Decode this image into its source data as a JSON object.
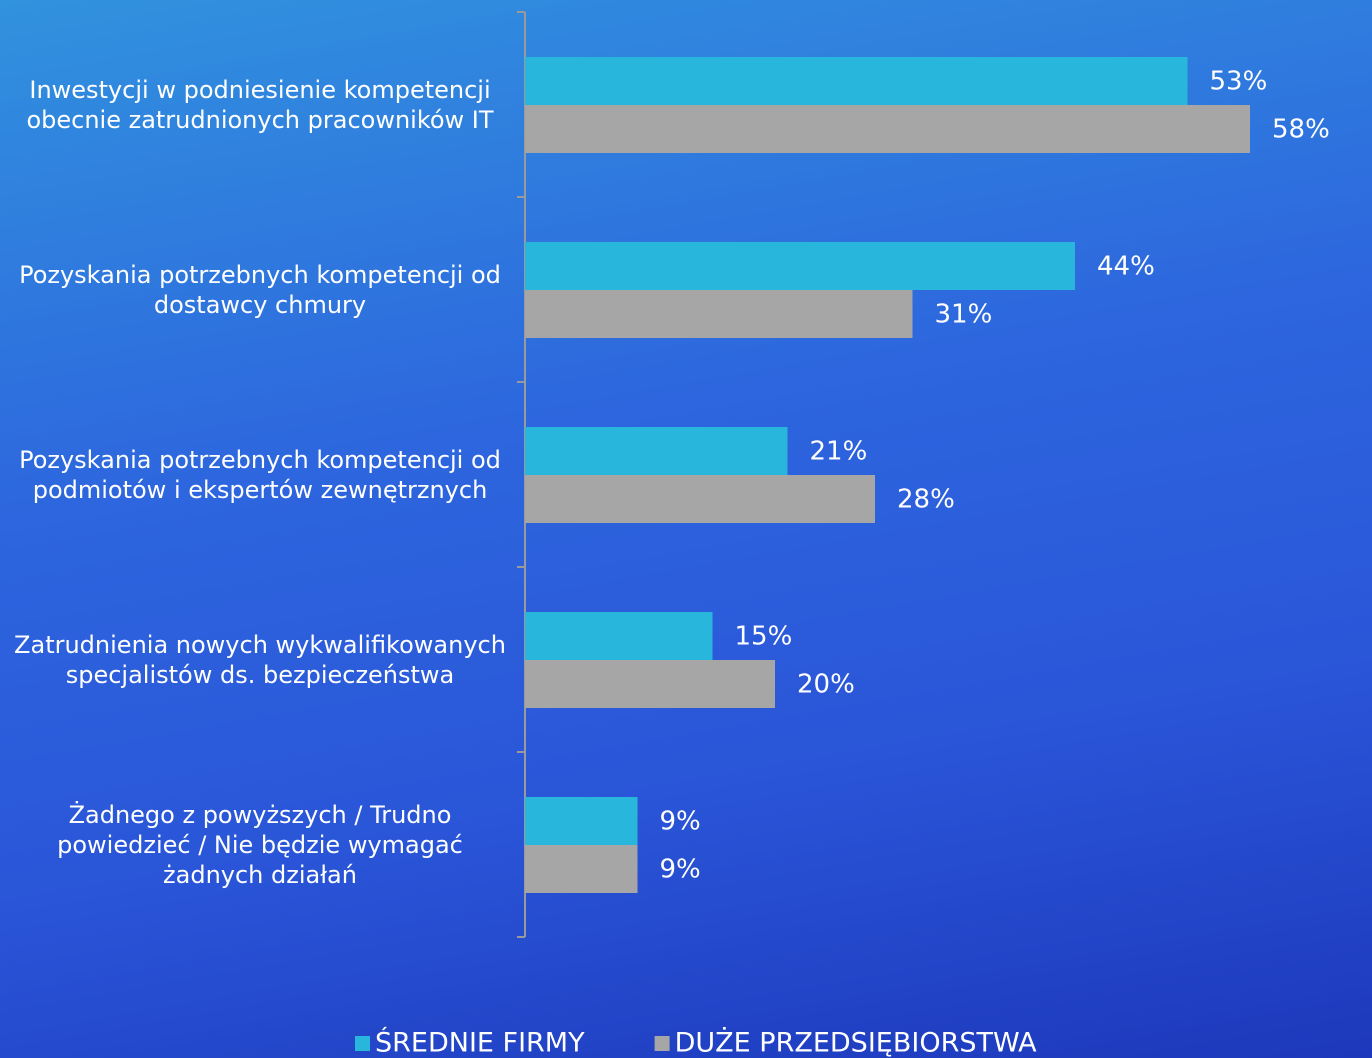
{
  "chart_data": {
    "type": "bar",
    "orientation": "horizontal",
    "categories": [
      "Inwestycji w podniesienie kompetencji obecnie zatrudnionych pracowników IT",
      "Pozyskania potrzebnych kompetencji od dostawcy chmury",
      "Pozyskania potrzebnych kompetencji od podmiotów i ekspertów zewnętrznych",
      "Zatrudnienia nowych wykwalifikowanych specjalistów ds. bezpieczeństwa",
      "Żadnego z powyższych / Trudno powiedzieć / Nie będzie wymagać żadnych działań"
    ],
    "series": [
      {
        "name": "ŚREDNIE FIRMY",
        "color": "#29b6dc",
        "values": [
          53,
          44,
          21,
          15,
          9
        ],
        "value_labels": [
          "53%",
          "44%",
          "21%",
          "15%",
          "9%"
        ]
      },
      {
        "name": "DUŻE PRZEDSIĘBIORSTWA",
        "color": "#a6a6a6",
        "values": [
          58,
          31,
          28,
          20,
          9
        ],
        "value_labels": [
          "58%",
          "31%",
          "28%",
          "20%",
          "9%"
        ]
      }
    ],
    "legend": "bottom"
  }
}
